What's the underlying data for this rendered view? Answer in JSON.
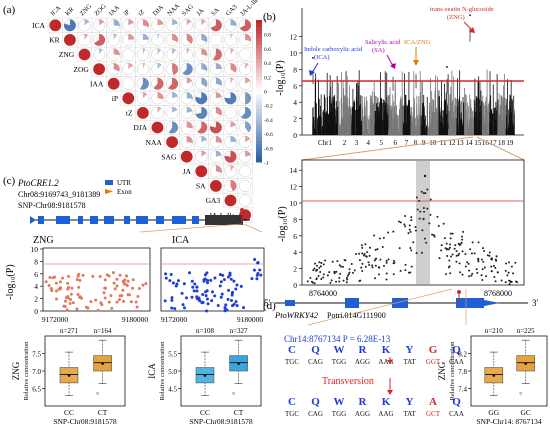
{
  "panels": {
    "a": "(a)",
    "b": "(b)",
    "c": "(c)",
    "d": "(d)"
  },
  "a": {
    "traits": [
      "ICA",
      "KR",
      "ZNG",
      "ZOG",
      "IAA",
      "iP",
      "tZ",
      "DJA",
      "NAA",
      "SAG",
      "JA",
      "SA",
      "GA3",
      "JA-L-Ile"
    ],
    "colorbar_ticks": [
      "1",
      "0.8",
      "0.6",
      "0.4",
      "0.2",
      "0",
      "-0.2",
      "-0.4",
      "-0.6",
      "-0.8",
      "-1"
    ],
    "colors": {
      "pos": "#c0282c",
      "neg": "#2c5fa8"
    }
  },
  "b": {
    "ylabel": "-log₁₀(P)",
    "chromosomes": [
      "Chr1",
      "2",
      "3",
      "4",
      "5",
      "6",
      "7",
      "8",
      "9",
      "10",
      "11",
      "12",
      "13",
      "14",
      "15",
      "16",
      "17",
      "18",
      "19"
    ],
    "yticks": [
      "0",
      "2",
      "4",
      "6",
      "8",
      "10",
      "12"
    ],
    "annotations": {
      "ica": [
        "Indole carboxylic acid",
        "(ICA)"
      ],
      "sa": [
        "Salicylic acid",
        "(SA)"
      ],
      "icazng": "ICA/ZNG",
      "zng": [
        "trans-zeatin N-glucoside",
        "(ZNG)"
      ]
    },
    "threshold_color": "#d62728"
  },
  "zoom": {
    "ylabel": "-log₁₀(P)",
    "yticks": [
      "0",
      "2",
      "4",
      "6",
      "8",
      "10",
      "12",
      "14"
    ],
    "xticks": [
      "8764000",
      "8768000"
    ]
  },
  "c": {
    "gene": "PtoCRE1.2",
    "coords": "Chr08:9169743_9181389",
    "snp": "SNP-Chr08:9181578",
    "legend": {
      "utr": "UTR",
      "exon": "Exon"
    },
    "zng_title": "ZNG",
    "ica_title": "ICA",
    "ylabel": "-log₁₀(P)",
    "yticks": [
      "0",
      "2",
      "4",
      "6",
      "8",
      "10"
    ],
    "xticks": [
      "9172000",
      "9180000"
    ],
    "colors": {
      "zng": "#e07a5f",
      "ica": "#1f3bd6"
    }
  },
  "boxes_c": {
    "zng": {
      "trait": "ZNG",
      "ylabel": "Relative concentration",
      "n": [
        "n=271",
        "n=164"
      ],
      "groups": [
        "CC",
        "CT"
      ],
      "xlabel": "SNP-Chr08:9181578",
      "yticks": [
        "6.5",
        "7.0",
        "7.5"
      ]
    },
    "ica": {
      "trait": "ICA",
      "ylabel": "Relative concentration",
      "n": [
        "n=108",
        "n=327"
      ],
      "groups": [
        "CC",
        "CT"
      ],
      "xlabel": "SNP-Chr08:9181578",
      "yticks": [
        "4.5",
        "5.0",
        "5.5"
      ]
    }
  },
  "d": {
    "gene": "PtoWRKY42",
    "gene_id": "Potri.014G111900",
    "assoc": "Chr14:8767134 P = 6.28E-13",
    "aa_top": [
      "C",
      "Q",
      "W",
      "R",
      "K",
      "Y",
      "G",
      "Q"
    ],
    "codons_top": [
      "TGC",
      "CAG",
      "TGG",
      "AGG",
      "AAG",
      "TAT",
      "GGT",
      "CAA"
    ],
    "transversion": "Transversion",
    "aa_bot": [
      "C",
      "Q",
      "W",
      "R",
      "K",
      "Y",
      "A",
      "Q"
    ],
    "codons_bot": [
      "TGC",
      "CAG",
      "TGG",
      "AGG",
      "AAG",
      "TAT",
      "GCT",
      "CAA"
    ],
    "five": "5'",
    "three": "3'"
  },
  "box_d": {
    "trait": "ZNG",
    "ylabel": "Relative concentration",
    "n": [
      "n=210",
      "n=225"
    ],
    "groups": [
      "GG",
      "GC"
    ],
    "xlabel": "SNP-Chr14: 8767134",
    "yticks": [
      "7.4",
      "7.8",
      "8.2"
    ]
  }
}
